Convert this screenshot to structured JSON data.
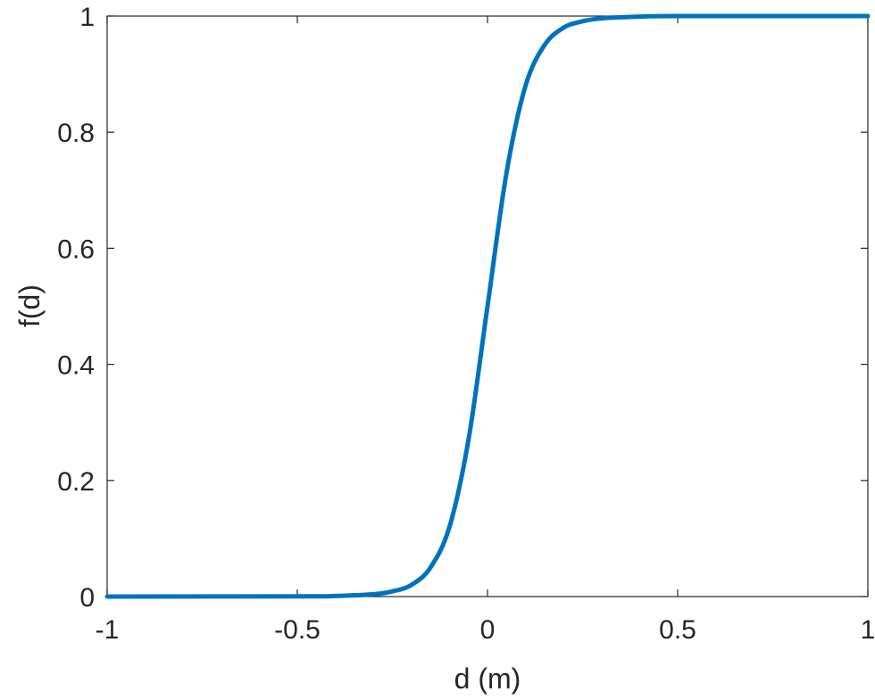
{
  "chart_data": {
    "type": "line",
    "title": "",
    "xlabel": "d (m)",
    "ylabel": "f(d)",
    "xlim": [
      -1,
      1
    ],
    "ylim": [
      0,
      1
    ],
    "xticks": [
      -1,
      -0.5,
      0,
      0.5,
      1
    ],
    "xtick_labels": [
      "-1",
      "-0.5",
      "0",
      "0.5",
      "1"
    ],
    "yticks": [
      0,
      0.2,
      0.4,
      0.6,
      0.8,
      1
    ],
    "ytick_labels": [
      "0",
      "0.2",
      "0.4",
      "0.6",
      "0.8",
      "1"
    ],
    "grid": false,
    "series": [
      {
        "color": "#0072BD",
        "x": [
          -1,
          -0.5,
          -0.4,
          -0.3,
          -0.25,
          -0.2,
          -0.15,
          -0.1,
          -0.05,
          0,
          0.05,
          0.1,
          0.15,
          0.2,
          0.25,
          0.3,
          0.4,
          0.5,
          1
        ],
        "y": [
          0,
          0.0003,
          0.001,
          0.004,
          0.009,
          0.02,
          0.05,
          0.12,
          0.27,
          0.5,
          0.73,
          0.88,
          0.95,
          0.98,
          0.991,
          0.996,
          0.999,
          1,
          1
        ]
      }
    ]
  }
}
